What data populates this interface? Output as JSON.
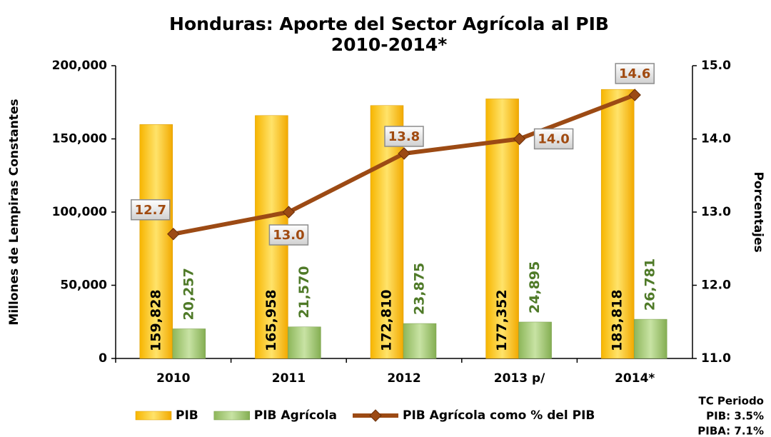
{
  "chart_data": {
    "type": "bar_line",
    "title": "Honduras: Aporte del Sector Agrícola al PIB",
    "subtitle": "2010-2014*",
    "y_label": "Millones de Lempiras Constantes",
    "y2_label": "Porcentajes",
    "categories": [
      "2010",
      "2011",
      "2012",
      "2013 p/",
      "2014*"
    ],
    "series": [
      {
        "name": "PIB",
        "color": "#FFC000",
        "values": [
          159828,
          165958,
          172810,
          177352,
          183818
        ],
        "value_labels": [
          "159,828",
          "165,958",
          "172,810",
          "177,352",
          "183,818"
        ]
      },
      {
        "name": "PIB Agrícola",
        "color": "#A6CC7A",
        "values": [
          20257,
          21570,
          23875,
          24895,
          26781
        ],
        "value_labels": [
          "20,257",
          "21,570",
          "23,875",
          "24,895",
          "26,781"
        ]
      },
      {
        "name": "PIB Agrícola como % del PIB",
        "color": "#9C4A14",
        "axis": "y2",
        "values": [
          12.7,
          13.0,
          13.8,
          14.0,
          14.6
        ],
        "value_labels": [
          "12.7",
          "13.0",
          "13.8",
          "14.0",
          "14.6"
        ]
      }
    ],
    "ylim": [
      0,
      200000
    ],
    "yticks": [
      0,
      {
        "value": 50000,
        "label": "50,000"
      },
      {
        "value": 100000,
        "label": "100,000"
      },
      {
        "value": 150000,
        "label": "150,000"
      },
      {
        "value": 200000,
        "label": "200,000"
      }
    ],
    "y2lim": [
      11,
      15
    ],
    "y2ticks": [
      {
        "value": 11,
        "label": "11.0"
      },
      {
        "value": 12,
        "label": "12.0"
      },
      {
        "value": 13,
        "label": "13.0"
      },
      {
        "value": 14,
        "label": "14.0"
      },
      {
        "value": 15,
        "label": "15.0"
      }
    ],
    "legend": "bottom",
    "annotations": [
      "TC Periodo",
      "PIB: 3.5%",
      "PIBA: 7.1%"
    ]
  }
}
